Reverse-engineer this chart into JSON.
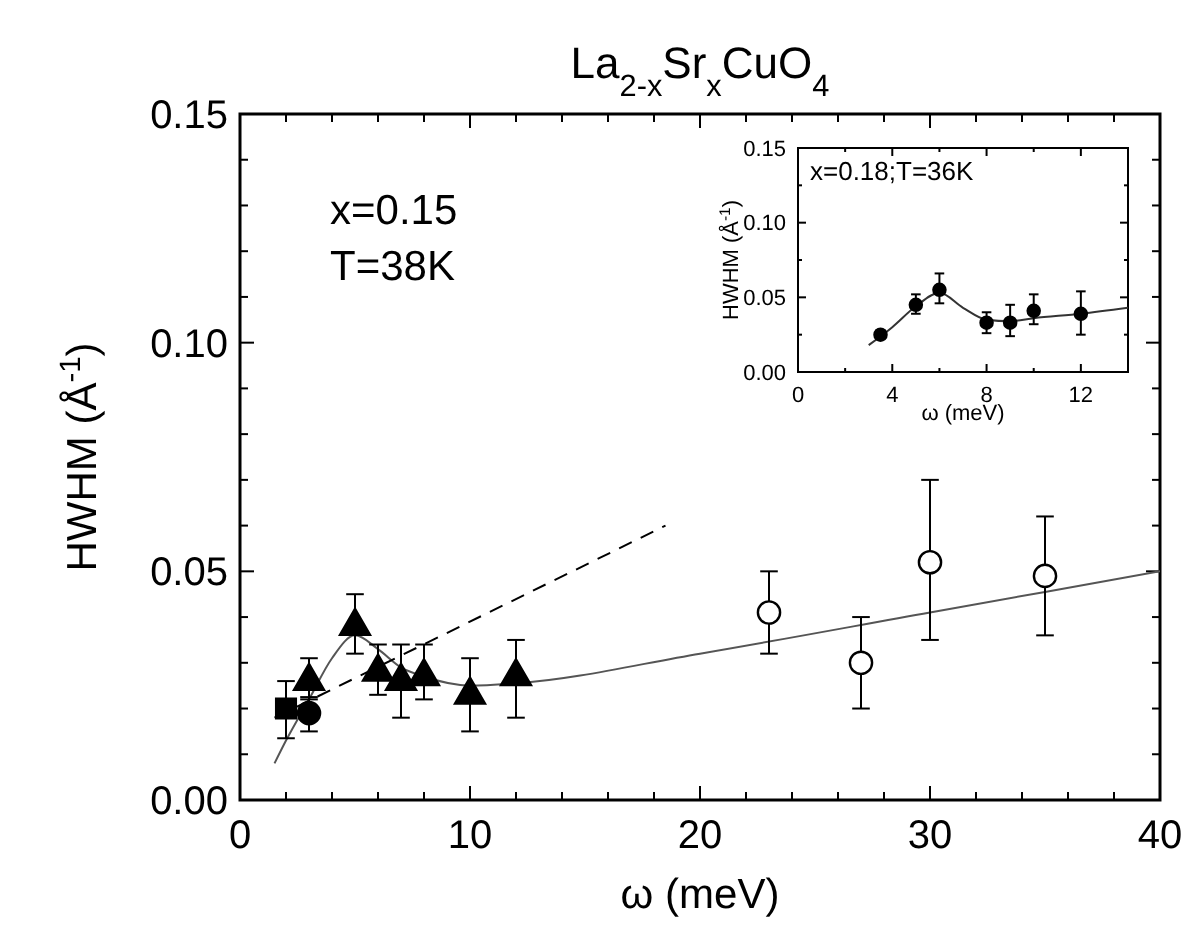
{
  "chart_data": [
    {
      "type": "scatter",
      "title": "La$_{2-x}$Sr$_{x}$CuO$_{4}$",
      "xlabel": "ω  (meV)",
      "ylabel": "HWHM  (Å$^{-1}$)",
      "xlim": [
        0,
        40
      ],
      "ylim": [
        0,
        0.15
      ],
      "xticks": [
        0,
        {
          "value": 2,
          "label": null
        },
        {
          "value": 4,
          "label": null
        },
        {
          "value": 6,
          "label": null
        },
        {
          "value": 8,
          "label": null
        },
        10,
        {
          "value": 12,
          "label": null
        },
        {
          "value": 14,
          "label": null
        },
        {
          "value": 16,
          "label": null
        },
        {
          "value": 18,
          "label": null
        },
        20,
        {
          "value": 22,
          "label": null
        },
        {
          "value": 24,
          "label": null
        },
        {
          "value": 26,
          "label": null
        },
        {
          "value": 28,
          "label": null
        },
        30,
        {
          "value": 32,
          "label": null
        },
        {
          "value": 34,
          "label": null
        },
        {
          "value": 36,
          "label": null
        },
        {
          "value": 38,
          "label": null
        },
        40
      ],
      "yticks": [
        {
          "value": 0,
          "label": "0.00"
        },
        {
          "value": 0.01,
          "label": null
        },
        {
          "value": 0.02,
          "label": null
        },
        {
          "value": 0.03,
          "label": null
        },
        {
          "value": 0.04,
          "label": null
        },
        {
          "value": 0.05,
          "label": "0.05"
        },
        {
          "value": 0.06,
          "label": null
        },
        {
          "value": 0.07,
          "label": null
        },
        {
          "value": 0.08,
          "label": null
        },
        {
          "value": 0.09,
          "label": null
        },
        {
          "value": 0.1,
          "label": "0.10"
        },
        {
          "value": 0.11,
          "label": null
        },
        {
          "value": 0.12,
          "label": null
        },
        {
          "value": 0.13,
          "label": null
        },
        {
          "value": 0.14,
          "label": null
        },
        {
          "value": 0.15,
          "label": "0.15"
        }
      ],
      "annotations": [
        "x=0.15",
        "T=38K"
      ],
      "grid": false,
      "series": [
        {
          "type": "line",
          "color": "#555555",
          "line_style": "solid",
          "marker": "none",
          "x": [
            1.5,
            2,
            3,
            4,
            5,
            6,
            7,
            8,
            10,
            12,
            20,
            30,
            40
          ],
          "values": [
            0.008,
            0.013,
            0.022,
            0.031,
            0.036,
            0.033,
            0.029,
            0.027,
            0.025,
            0.0255,
            0.032,
            0.041,
            0.05
          ]
        },
        {
          "type": "line",
          "color": "#000000",
          "line_style": "dashed",
          "marker": "none",
          "x": [
            1.5,
            18.5
          ],
          "values": [
            0.018,
            0.06
          ]
        },
        {
          "color": "#000000",
          "marker": "square",
          "x": [
            2
          ],
          "values": [
            0.02
          ],
          "errors": [
            [
              0.0135,
              0.026
            ]
          ]
        },
        {
          "color": "#000000",
          "marker": "circle",
          "x": [
            3
          ],
          "values": [
            0.019
          ],
          "errors": [
            [
              0.015,
              0.0225
            ]
          ]
        },
        {
          "color": "#000000",
          "marker": "triangle",
          "x": [
            3,
            5,
            6,
            7,
            8,
            10,
            12
          ],
          "values": [
            0.026,
            0.038,
            0.028,
            0.026,
            0.027,
            0.023,
            0.027
          ],
          "errors": [
            [
              0.022,
              0.031
            ],
            [
              0.032,
              0.045
            ],
            [
              0.023,
              0.034
            ],
            [
              0.018,
              0.034
            ],
            [
              0.022,
              0.034
            ],
            [
              0.015,
              0.031
            ],
            [
              0.018,
              0.035
            ]
          ]
        },
        {
          "color": "#ffffff",
          "marker": "circle",
          "x": [
            23,
            27,
            30,
            35
          ],
          "values": [
            0.041,
            0.03,
            0.052,
            0.049
          ],
          "errors": [
            [
              0.032,
              0.05
            ],
            [
              0.02,
              0.04
            ],
            [
              0.035,
              0.07
            ],
            [
              0.036,
              0.062
            ]
          ]
        }
      ]
    },
    {
      "type": "scatter",
      "xlabel": "ω  (meV)",
      "ylabel": "HWHM  (Å$^{-1}$)",
      "xlim": [
        0,
        14
      ],
      "ylim": [
        0,
        0.15
      ],
      "xticks": [
        0,
        {
          "value": 2,
          "label": null
        },
        4,
        {
          "value": 6,
          "label": null
        },
        8,
        {
          "value": 10,
          "label": null
        },
        12,
        {
          "value": 14,
          "label": null
        }
      ],
      "yticks": [
        {
          "value": 0,
          "label": "0.00"
        },
        {
          "value": 0.025,
          "label": null
        },
        {
          "value": 0.05,
          "label": "0.05"
        },
        {
          "value": 0.075,
          "label": null
        },
        {
          "value": 0.1,
          "label": "0.10"
        },
        {
          "value": 0.125,
          "label": null
        },
        {
          "value": 0.15,
          "label": "0.15"
        }
      ],
      "annotations": [
        "x=0.18;T=36K"
      ],
      "grid": false,
      "series": [
        {
          "type": "line",
          "color": "#333333",
          "line_style": "solid",
          "marker": "none",
          "x": [
            3,
            4,
            5,
            6,
            7,
            8,
            9,
            10,
            12,
            14
          ],
          "values": [
            0.018,
            0.03,
            0.044,
            0.053,
            0.043,
            0.035,
            0.034,
            0.036,
            0.039,
            0.043
          ]
        },
        {
          "color": "#000000",
          "marker": "circle",
          "x": [
            3.5,
            5,
            6,
            8,
            9,
            10,
            12
          ],
          "values": [
            0.025,
            0.045,
            0.055,
            0.033,
            0.033,
            0.041,
            0.039
          ],
          "errors": [
            [
              0.022,
              0.028
            ],
            [
              0.039,
              0.052
            ],
            [
              0.046,
              0.066
            ],
            [
              0.026,
              0.04
            ],
            [
              0.024,
              0.045
            ],
            [
              0.032,
              0.052
            ],
            [
              0.025,
              0.054
            ]
          ]
        }
      ]
    }
  ]
}
